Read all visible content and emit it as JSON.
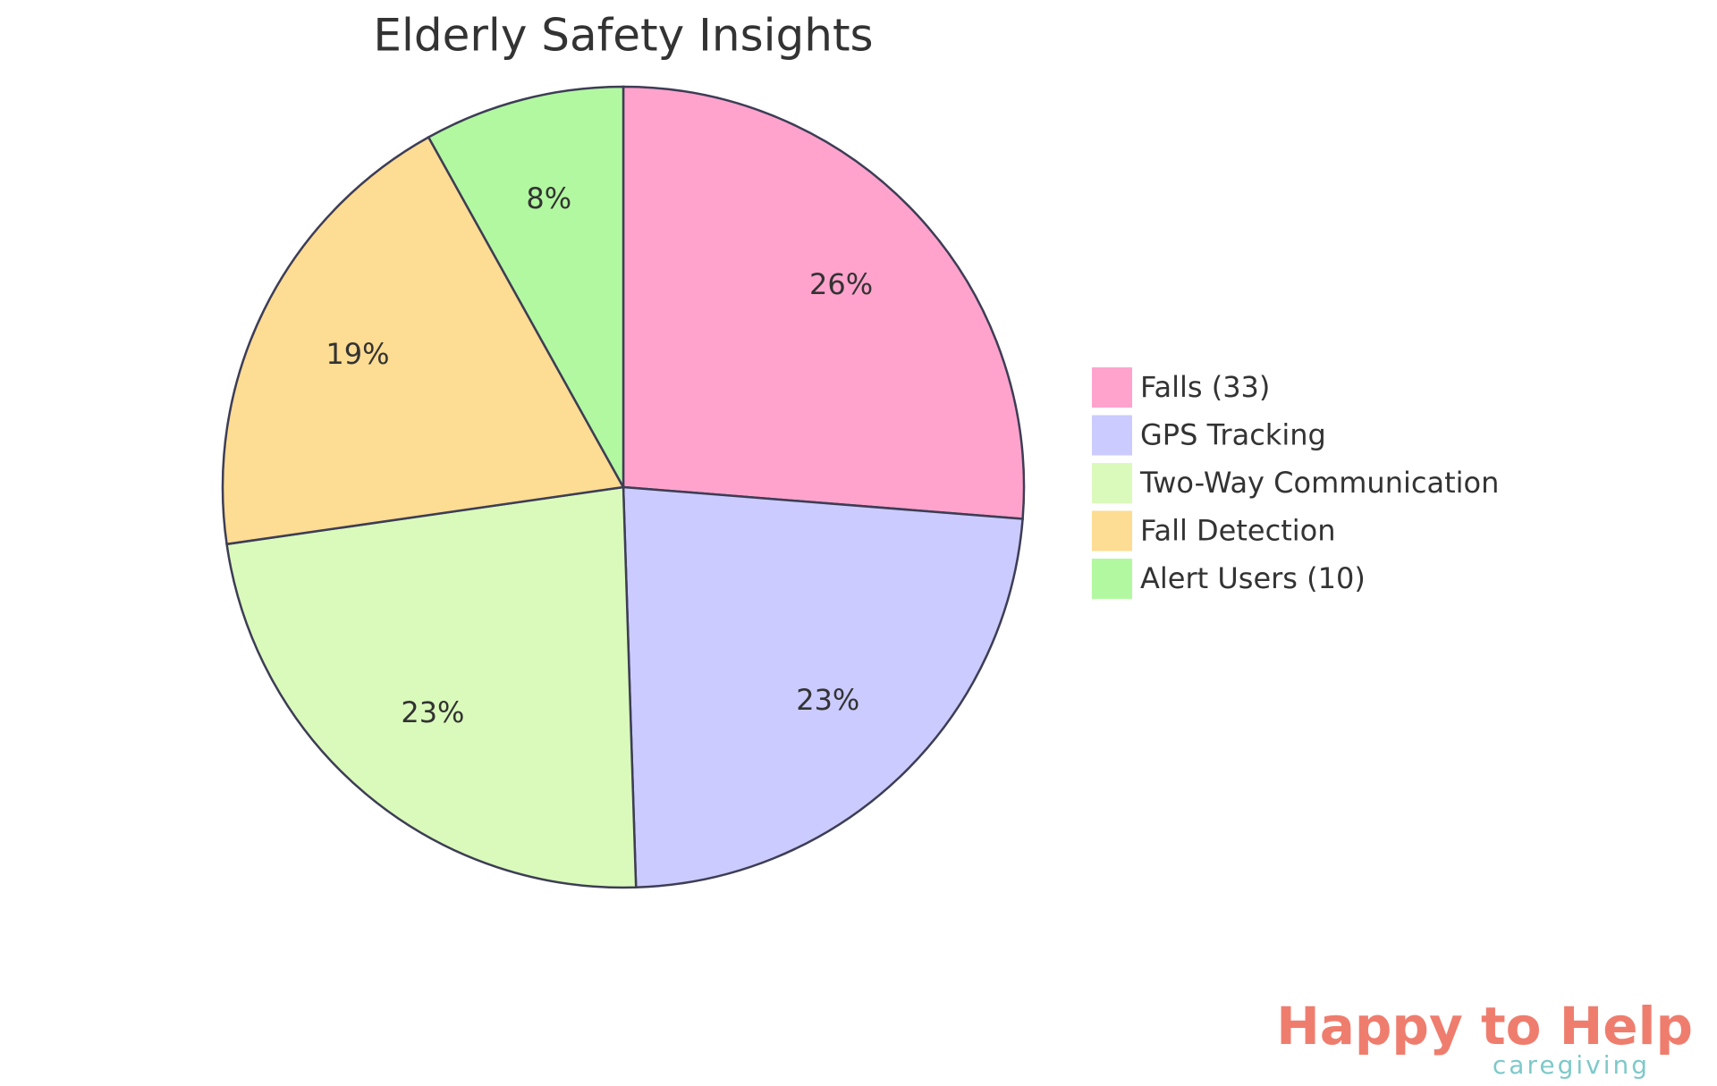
{
  "chart_data": {
    "type": "pie",
    "title": "Elderly Safety Insights",
    "categories": [
      "Falls (33)",
      "GPS Tracking",
      "Two-Way Communication",
      "Fall Detection",
      "Alert Users (10)"
    ],
    "values": [
      26,
      23,
      23,
      19,
      8
    ],
    "value_labels": [
      "26%",
      "23%",
      "23%",
      "19%",
      "8%"
    ],
    "colors": [
      "#ffa3cd",
      "#cbcbff",
      "#dafabb",
      "#fddc93",
      "#b2f8a0"
    ],
    "legend": "right"
  },
  "logo": {
    "name": "Happy to Help",
    "tagline": "caregiving"
  }
}
